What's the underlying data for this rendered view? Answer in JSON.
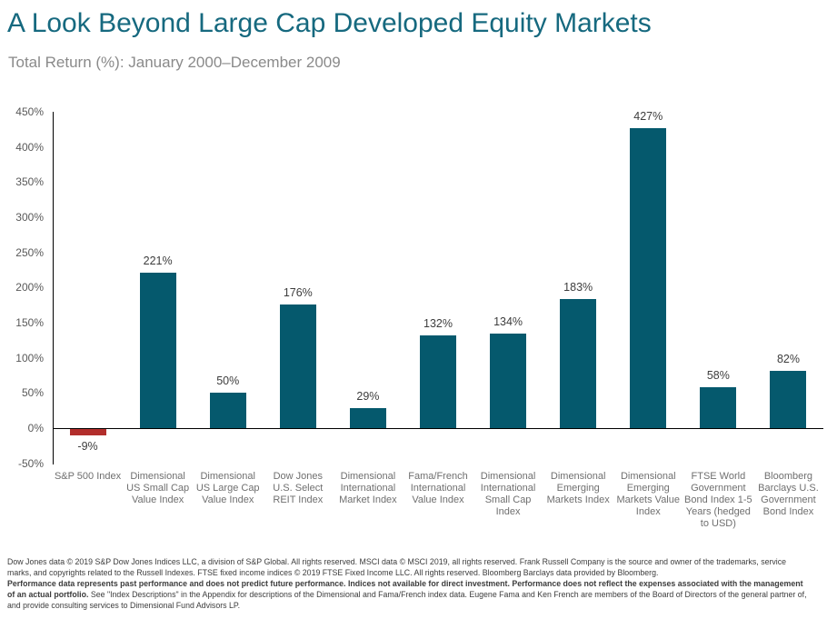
{
  "header": {
    "title": "A Look Beyond Large Cap Developed Equity Markets",
    "subtitle": "Total Return (%): January 2000–December 2009"
  },
  "chart_data": {
    "type": "bar",
    "title": "A Look Beyond Large Cap Developed Equity Markets",
    "subtitle": "Total Return (%): January 2000–December 2009",
    "categories": [
      "S&P 500 Index",
      "Dimensional US Small Cap Value Index",
      "Dimensional US Large Cap Value Index",
      "Dow Jones U.S. Select REIT Index",
      "Dimensional International Market Index",
      "Fama/French International Value Index",
      "Dimensional International Small Cap Index",
      "Dimensional Emerging Markets Index",
      "Dimensional Emerging Markets Value Index",
      "FTSE World Government Bond Index 1-5 Years (hedged to USD)",
      "Bloomberg Barclays U.S. Government Bond Index"
    ],
    "values": [
      -9,
      221,
      50,
      176,
      29,
      132,
      134,
      183,
      427,
      58,
      82
    ],
    "value_labels": [
      "-9%",
      "221%",
      "50%",
      "176%",
      "29%",
      "132%",
      "134%",
      "183%",
      "427%",
      "58%",
      "82%"
    ],
    "ylabel": "",
    "xlabel": "",
    "ylim": [
      -50,
      450
    ],
    "ytick_step": 50,
    "ytick_labels": [
      "450%",
      "400%",
      "350%",
      "300%",
      "250%",
      "200%",
      "150%",
      "100%",
      "50%",
      "0%",
      "-50%"
    ],
    "grid": false,
    "legend": false,
    "bar_color_positive": "#05596d",
    "bar_color_negative": "#b22e2c"
  },
  "footnotes": {
    "p1": "Dow Jones data © 2019 S&P Dow Jones Indices LLC, a division of S&P Global. All rights reserved. MSCI data © MSCI 2019, all rights reserved. Frank Russell Company is the source and owner of the trademarks, service marks, and copyrights related to the Russell Indexes. FTSE fixed income indices © 2019 FTSE Fixed Income LLC. All rights reserved. Bloomberg Barclays data provided by Bloomberg.",
    "p2_bold": "Performance data represents past performance and does not predict future performance. Indices not available for direct investment. Performance does not reflect the expenses associated with the management of an actual portfolio.",
    "p2_regular": " See \"Index Descriptions\" in the Appendix for descriptions of the Dimensional and Fama/French index data. Eugene Fama and Ken French are members of the Board of Directors of the general partner of, and provide consulting services to Dimensional Fund Advisors LP."
  }
}
